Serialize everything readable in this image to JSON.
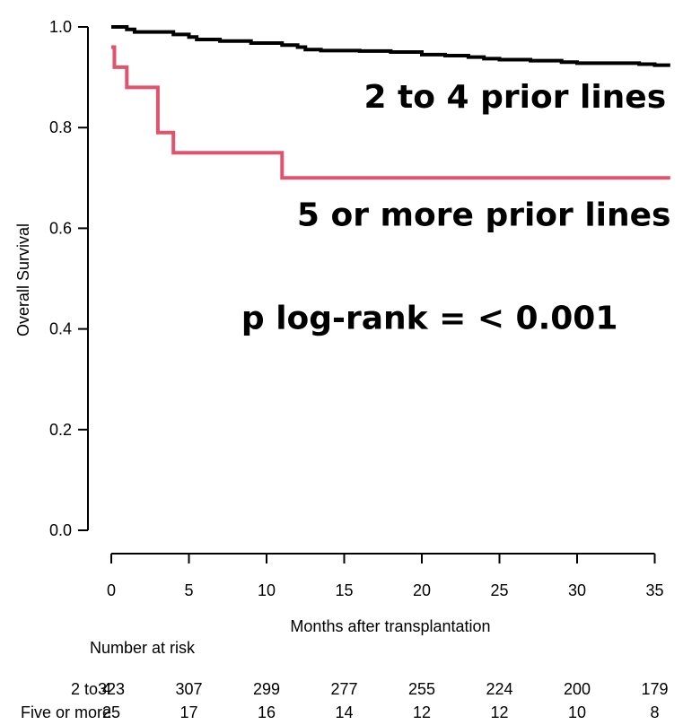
{
  "chart_data": {
    "type": "line",
    "step": true,
    "xlabel": "Months after transplantation",
    "ylabel": "Overall Survival",
    "xlim": [
      0,
      36
    ],
    "ylim": [
      0,
      1
    ],
    "x_ticks": [
      0,
      5,
      10,
      15,
      20,
      25,
      30,
      35
    ],
    "y_ticks": [
      "0.0",
      "0.2",
      "0.4",
      "0.6",
      "0.8",
      "1.0"
    ],
    "grid": false,
    "series": [
      {
        "color": "#000000",
        "points": [
          [
            0,
            1.0
          ],
          [
            1,
            0.995
          ],
          [
            1.5,
            0.99
          ],
          [
            4,
            0.985
          ],
          [
            5,
            0.98
          ],
          [
            5.5,
            0.975
          ],
          [
            7,
            0.972
          ],
          [
            9,
            0.968
          ],
          [
            11,
            0.964
          ],
          [
            12,
            0.96
          ],
          [
            12.5,
            0.955
          ],
          [
            13.5,
            0.953
          ],
          [
            16,
            0.952
          ],
          [
            18,
            0.95
          ],
          [
            20,
            0.945
          ],
          [
            21.5,
            0.943
          ],
          [
            23,
            0.94
          ],
          [
            24,
            0.937
          ],
          [
            25,
            0.935
          ],
          [
            27,
            0.933
          ],
          [
            29,
            0.93
          ],
          [
            30,
            0.928
          ],
          [
            34,
            0.926
          ],
          [
            35,
            0.924
          ],
          [
            36,
            0.924
          ]
        ]
      },
      {
        "color": "#E0536E",
        "points": [
          [
            0,
            0.96
          ],
          [
            0.2,
            0.92
          ],
          [
            1,
            0.88
          ],
          [
            3,
            0.79
          ],
          [
            4,
            0.75
          ],
          [
            11,
            0.7
          ],
          [
            36,
            0.7
          ]
        ]
      }
    ],
    "annotations": [
      {
        "text": "2 to 4 prior lines",
        "x": 26,
        "y": 0.84
      },
      {
        "text": "5 or more prior lines",
        "x": 24,
        "y": 0.605
      },
      {
        "text": "p log-rank = < 0.001",
        "x": 20.5,
        "y": 0.4
      }
    ],
    "risk_table": {
      "title": "Number at risk",
      "rows": [
        {
          "label": "2 to 4",
          "values": [
            "323",
            "307",
            "299",
            "277",
            "255",
            "224",
            "200",
            "179"
          ]
        },
        {
          "label": "Five or more",
          "values": [
            "25",
            "17",
            "16",
            "14",
            "12",
            "12",
            "10",
            "8"
          ]
        }
      ]
    }
  }
}
